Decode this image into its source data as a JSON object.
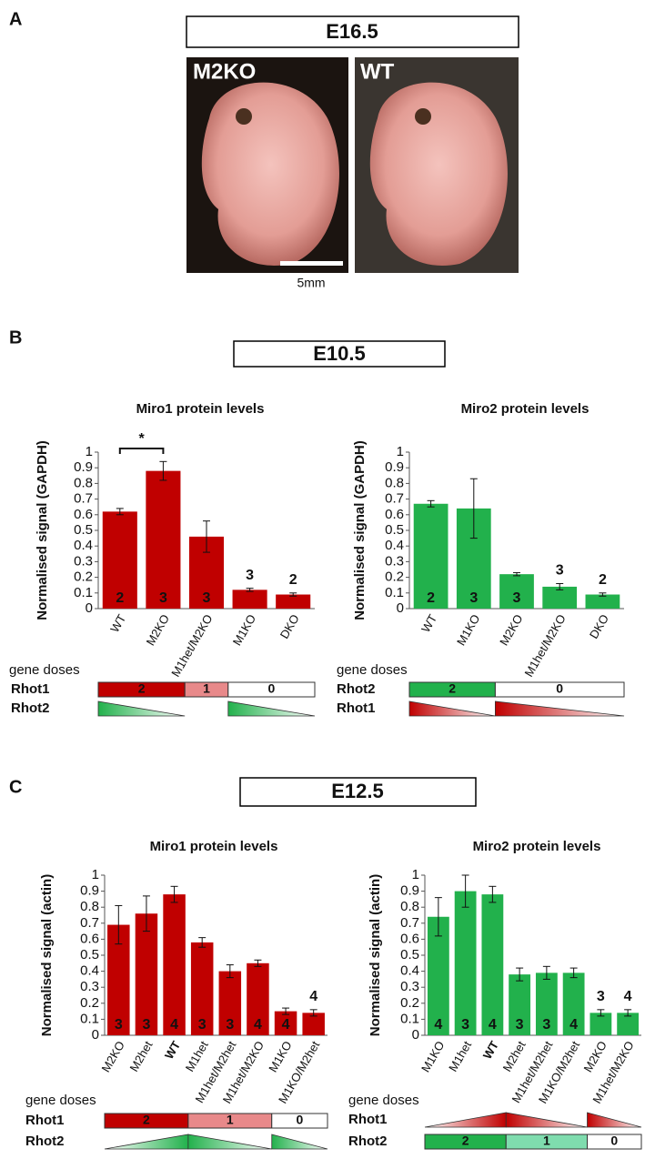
{
  "panels": [
    {
      "label": "A",
      "stage": "E16.5",
      "images": [
        "M2KO",
        "WT"
      ],
      "scale_bar": "5mm"
    },
    {
      "label": "B",
      "stage": "E10.5"
    },
    {
      "label": "C",
      "stage": "E12.5"
    }
  ],
  "chart_data": [
    {
      "type": "bar",
      "title": "Miro1 protein levels",
      "y_label": "Normalised signal (GAPDH)",
      "categories": [
        "WT",
        "M2KO",
        "M1het/M2KO",
        "M1KO",
        "DKO"
      ],
      "values": [
        0.62,
        0.88,
        0.46,
        0.12,
        0.09
      ],
      "errors": [
        0.02,
        0.06,
        0.1,
        0.01,
        0.01
      ],
      "n": [
        2,
        3,
        3,
        3,
        2
      ],
      "color": "#c00000",
      "ylim": [
        0,
        1
      ],
      "yticks": [
        0,
        0.1,
        0.2,
        0.3,
        0.4,
        0.5,
        0.6,
        0.7,
        0.8,
        0.9,
        1
      ],
      "annotations": [
        {
          "text": "*",
          "between": [
            "WT",
            "M2KO"
          ]
        }
      ],
      "gene_doses": {
        "label": "gene doses",
        "rows": [
          {
            "name": "Rhot1",
            "doses": [
              2,
              1,
              0
            ],
            "colors": [
              "#c00000",
              "#e8898a",
              "#ffffff"
            ]
          },
          {
            "name": "Rhot2",
            "color": "#22b14c"
          }
        ]
      }
    },
    {
      "type": "bar",
      "title": "Miro2 protein levels",
      "y_label": "Normalised signal (GAPDH)",
      "categories": [
        "WT",
        "M1KO",
        "M2KO",
        "M1het/M2KO",
        "DKO"
      ],
      "values": [
        0.67,
        0.64,
        0.22,
        0.14,
        0.09
      ],
      "errors": [
        0.02,
        0.19,
        0.01,
        0.02,
        0.01
      ],
      "n": [
        2,
        3,
        3,
        3,
        2
      ],
      "color": "#22b14c",
      "ylim": [
        0,
        1
      ],
      "yticks": [
        0,
        0.1,
        0.2,
        0.3,
        0.4,
        0.5,
        0.6,
        0.7,
        0.8,
        0.9,
        1
      ],
      "gene_doses": {
        "label": "gene doses",
        "rows": [
          {
            "name": "Rhot2",
            "doses": [
              2,
              0
            ],
            "colors": [
              "#22b14c",
              "#ffffff"
            ]
          },
          {
            "name": "Rhot1",
            "color": "#c00000"
          }
        ]
      }
    },
    {
      "type": "bar",
      "title": "Miro1 protein levels",
      "y_label": "Normalised signal (actin)",
      "categories": [
        "M2KO",
        "M2het",
        "WT",
        "M1het",
        "M1het/M2het",
        "M1het/M2KO",
        "M1KO",
        "M1KO/M2het"
      ],
      "values": [
        0.69,
        0.76,
        0.88,
        0.58,
        0.4,
        0.45,
        0.15,
        0.14
      ],
      "errors": [
        0.12,
        0.11,
        0.05,
        0.03,
        0.04,
        0.02,
        0.02,
        0.02
      ],
      "n": [
        3,
        3,
        4,
        3,
        3,
        4,
        4,
        4
      ],
      "bold": [
        false,
        false,
        true,
        false,
        false,
        false,
        false,
        false
      ],
      "color": "#c00000",
      "ylim": [
        0,
        1
      ],
      "yticks": [
        0,
        0.1,
        0.2,
        0.3,
        0.4,
        0.5,
        0.6,
        0.7,
        0.8,
        0.9,
        1
      ],
      "gene_doses": {
        "label": "gene doses",
        "rows": [
          {
            "name": "Rhot1",
            "doses": [
              2,
              1,
              0
            ],
            "colors": [
              "#c00000",
              "#e8898a",
              "#ffffff"
            ]
          },
          {
            "name": "Rhot2",
            "color": "#22b14c"
          }
        ]
      }
    },
    {
      "type": "bar",
      "title": "Miro2 protein levels",
      "y_label": "Normalised signal (actin)",
      "categories": [
        "M1KO",
        "M1het",
        "WT",
        "M2het",
        "M1het/M2het",
        "M1KO/M2het",
        "M2KO",
        "M1het/M2KO"
      ],
      "values": [
        0.74,
        0.9,
        0.88,
        0.38,
        0.39,
        0.39,
        0.14,
        0.14
      ],
      "errors": [
        0.12,
        0.1,
        0.05,
        0.04,
        0.04,
        0.03,
        0.02,
        0.02
      ],
      "n": [
        4,
        3,
        4,
        3,
        3,
        4,
        3,
        4
      ],
      "bold": [
        false,
        false,
        true,
        false,
        false,
        false,
        false,
        false
      ],
      "color": "#22b14c",
      "ylim": [
        0,
        1
      ],
      "yticks": [
        0,
        0.1,
        0.2,
        0.3,
        0.4,
        0.5,
        0.6,
        0.7,
        0.8,
        0.9,
        1
      ],
      "gene_doses": {
        "label": "gene doses",
        "rows": [
          {
            "name": "Rhot1",
            "color": "#c00000"
          },
          {
            "name": "Rhot2",
            "doses": [
              2,
              1,
              0
            ],
            "colors": [
              "#22b14c",
              "#7fdcae",
              "#ffffff"
            ]
          }
        ]
      }
    }
  ]
}
